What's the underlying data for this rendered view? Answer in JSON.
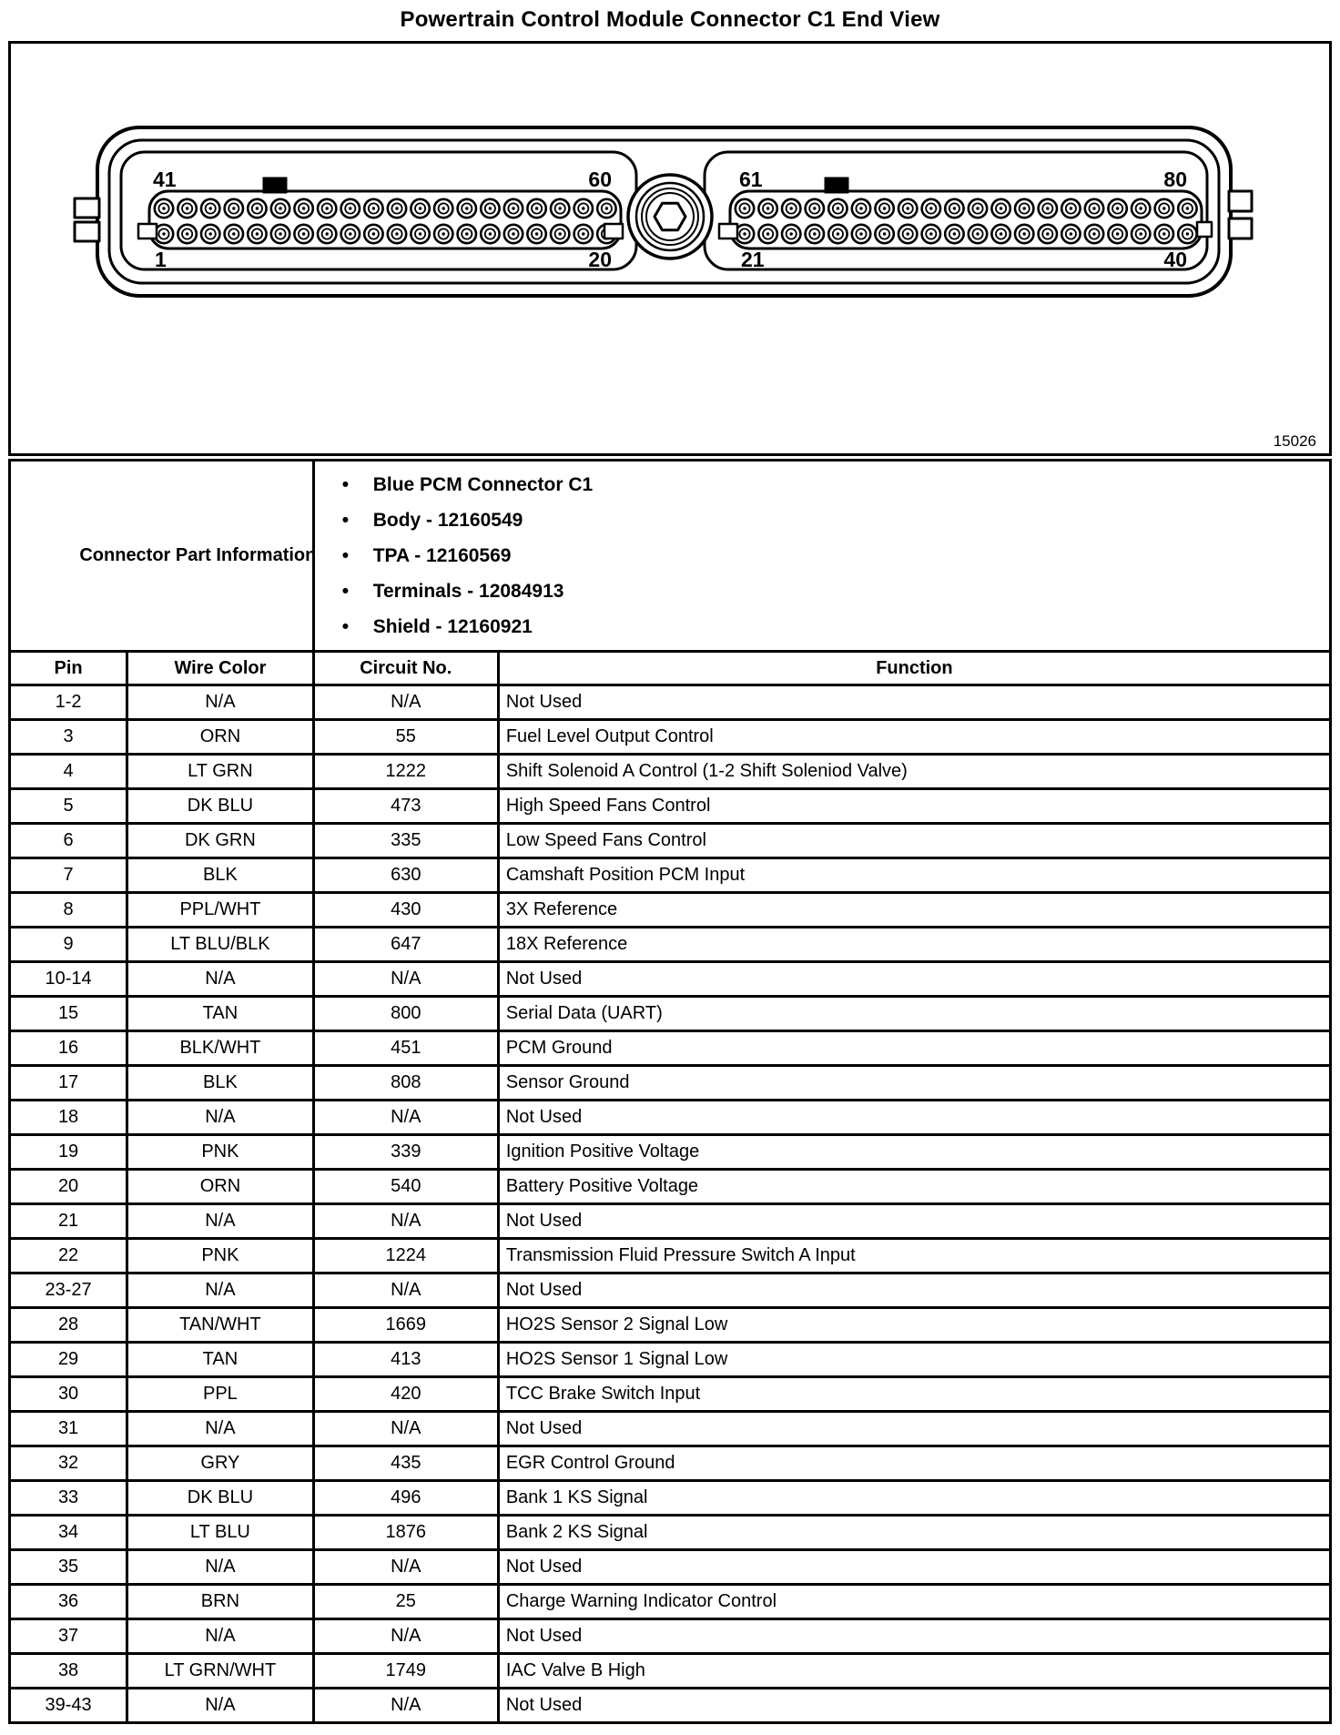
{
  "page": {
    "title": "Powertrain Control Module Connector C1 End View"
  },
  "figure": {
    "figure_number": "15026",
    "pins_per_row": 20,
    "rows_per_block": 2,
    "left_block": {
      "top_left_pin": "41",
      "top_right_pin": "60",
      "bottom_left_pin": "1",
      "bottom_right_pin": "20"
    },
    "right_block": {
      "top_left_pin": "61",
      "top_right_pin": "80",
      "bottom_left_pin": "21",
      "bottom_right_pin": "40"
    }
  },
  "connector_part_information": {
    "label": "Connector Part Information",
    "bullets": [
      "Blue PCM Connector C1",
      "Body - 12160549",
      "TPA - 12160569",
      "Terminals - 12084913",
      "Shield - 12160921"
    ]
  },
  "pin_table": {
    "headers": [
      "Pin",
      "Wire Color",
      "Circuit No.",
      "Function"
    ],
    "rows": [
      [
        "1-2",
        "N/A",
        "N/A",
        "Not Used"
      ],
      [
        "3",
        "ORN",
        "55",
        "Fuel Level Output Control"
      ],
      [
        "4",
        "LT GRN",
        "1222",
        "Shift Solenoid A Control (1-2 Shift Soleniod Valve)"
      ],
      [
        "5",
        "DK BLU",
        "473",
        "High Speed Fans Control"
      ],
      [
        "6",
        "DK GRN",
        "335",
        "Low Speed Fans Control"
      ],
      [
        "7",
        "BLK",
        "630",
        "Camshaft Position PCM Input"
      ],
      [
        "8",
        "PPL/WHT",
        "430",
        "3X Reference"
      ],
      [
        "9",
        "LT BLU/BLK",
        "647",
        "18X Reference"
      ],
      [
        "10-14",
        "N/A",
        "N/A",
        "Not Used"
      ],
      [
        "15",
        "TAN",
        "800",
        "Serial Data (UART)"
      ],
      [
        "16",
        "BLK/WHT",
        "451",
        "PCM Ground"
      ],
      [
        "17",
        "BLK",
        "808",
        "Sensor Ground"
      ],
      [
        "18",
        "N/A",
        "N/A",
        "Not Used"
      ],
      [
        "19",
        "PNK",
        "339",
        "Ignition Positive Voltage"
      ],
      [
        "20",
        "ORN",
        "540",
        "Battery Positive Voltage"
      ],
      [
        "21",
        "N/A",
        "N/A",
        "Not Used"
      ],
      [
        "22",
        "PNK",
        "1224",
        "Transmission Fluid Pressure Switch A Input"
      ],
      [
        "23-27",
        "N/A",
        "N/A",
        "Not Used"
      ],
      [
        "28",
        "TAN/WHT",
        "1669",
        "HO2S Sensor 2 Signal Low"
      ],
      [
        "29",
        "TAN",
        "413",
        "HO2S Sensor 1 Signal Low"
      ],
      [
        "30",
        "PPL",
        "420",
        "TCC Brake Switch Input"
      ],
      [
        "31",
        "N/A",
        "N/A",
        "Not Used"
      ],
      [
        "32",
        "GRY",
        "435",
        "EGR Control Ground"
      ],
      [
        "33",
        "DK BLU",
        "496",
        "Bank 1 KS Signal"
      ],
      [
        "34",
        "LT BLU",
        "1876",
        "Bank 2 KS Signal"
      ],
      [
        "35",
        "N/A",
        "N/A",
        "Not Used"
      ],
      [
        "36",
        "BRN",
        "25",
        "Charge Warning Indicator Control"
      ],
      [
        "37",
        "N/A",
        "N/A",
        "Not Used"
      ],
      [
        "38",
        "LT GRN/WHT",
        "1749",
        "IAC Valve B High"
      ],
      [
        "39-43",
        "N/A",
        "N/A",
        "Not Used"
      ]
    ]
  }
}
